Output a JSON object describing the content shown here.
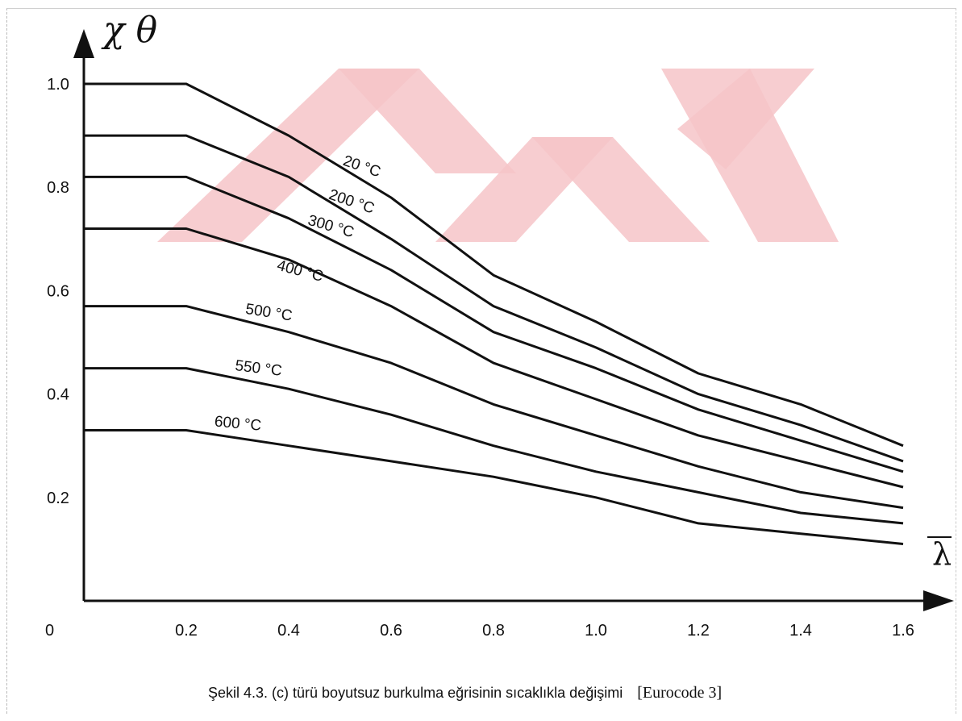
{
  "chart_data": {
    "type": "line",
    "ylabel": "χ θ",
    "xlabel": "λ",
    "xlim": [
      0,
      1.6
    ],
    "ylim": [
      0,
      1.0
    ],
    "origin_label": "0",
    "x_ticks": [
      "0.2",
      "0.4",
      "0.6",
      "0.8",
      "1.0",
      "1.2",
      "1.4",
      "1.6"
    ],
    "y_ticks": [
      "0.2",
      "0.4",
      "0.6",
      "0.8",
      "1.0"
    ],
    "x": [
      0,
      0.2,
      0.4,
      0.6,
      0.8,
      1.0,
      1.2,
      1.4,
      1.6
    ],
    "series": [
      {
        "name": "20 °C",
        "values": [
          1.0,
          1.0,
          0.9,
          0.78,
          0.63,
          0.54,
          0.44,
          0.38,
          0.3
        ]
      },
      {
        "name": "200 °C",
        "values": [
          0.9,
          0.9,
          0.82,
          0.7,
          0.57,
          0.49,
          0.4,
          0.34,
          0.27
        ]
      },
      {
        "name": "300 °C",
        "values": [
          0.82,
          0.82,
          0.74,
          0.64,
          0.52,
          0.45,
          0.37,
          0.31,
          0.25
        ]
      },
      {
        "name": "400 °C",
        "values": [
          0.72,
          0.72,
          0.66,
          0.57,
          0.46,
          0.39,
          0.32,
          0.27,
          0.22
        ]
      },
      {
        "name": "500 °C",
        "values": [
          0.57,
          0.57,
          0.52,
          0.46,
          0.38,
          0.32,
          0.26,
          0.21,
          0.18
        ]
      },
      {
        "name": "550 °C",
        "values": [
          0.45,
          0.45,
          0.41,
          0.36,
          0.3,
          0.25,
          0.21,
          0.17,
          0.15
        ]
      },
      {
        "name": "600 °C",
        "values": [
          0.33,
          0.33,
          0.3,
          0.27,
          0.24,
          0.2,
          0.15,
          0.13,
          0.11
        ]
      }
    ]
  },
  "caption": {
    "text": "Şekil 4.3.  (c) türü boyutsuz burkulma eğrisinin sıcaklıkla değişimi",
    "source": "[Eurocode 3]"
  },
  "watermark": {
    "color": "#f6c4c8"
  }
}
